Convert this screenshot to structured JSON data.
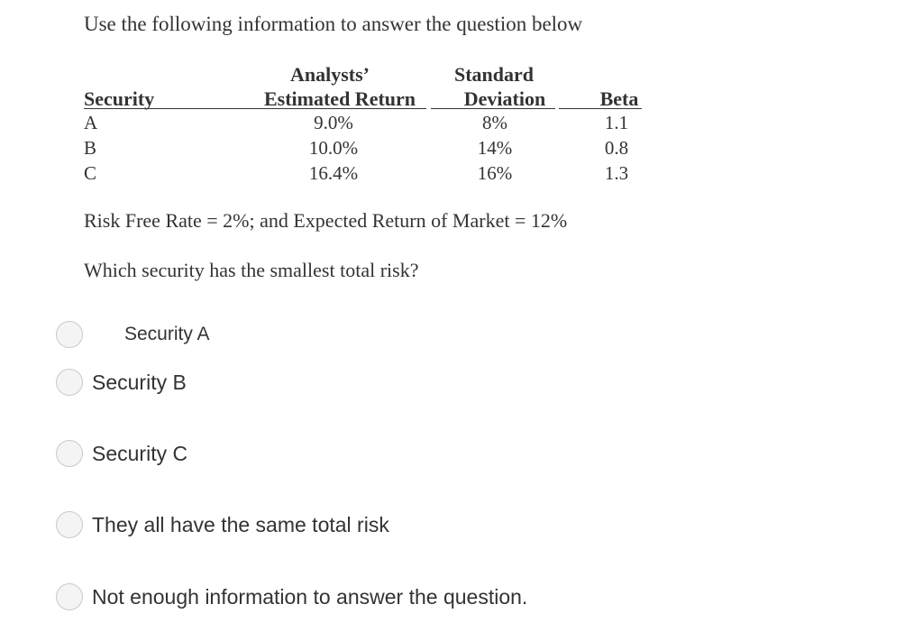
{
  "intro": "Use the following information to answer the question below",
  "table": {
    "headers": {
      "security": "Security",
      "return_line1": "Analysts’",
      "return_line2": "Estimated Return",
      "sd_line1": "Standard",
      "sd_line2": "Deviation",
      "beta": "Beta"
    },
    "rows": [
      {
        "security": "A",
        "return": "9.0%",
        "sd": "8%",
        "beta": "1.1"
      },
      {
        "security": "B",
        "return": "10.0%",
        "sd": "14%",
        "beta": "0.8"
      },
      {
        "security": "C",
        "return": "16.4%",
        "sd": "16%",
        "beta": "1.3"
      }
    ]
  },
  "market_info": "Risk Free Rate = 2%; and Expected Return of Market = 12%",
  "question": "Which security has the smallest total risk?",
  "options": [
    {
      "label": "Security A"
    },
    {
      "label": "Security B"
    },
    {
      "label": "Security C"
    },
    {
      "label": "They all have the same total risk"
    },
    {
      "label": "Not enough information to answer the question."
    }
  ]
}
